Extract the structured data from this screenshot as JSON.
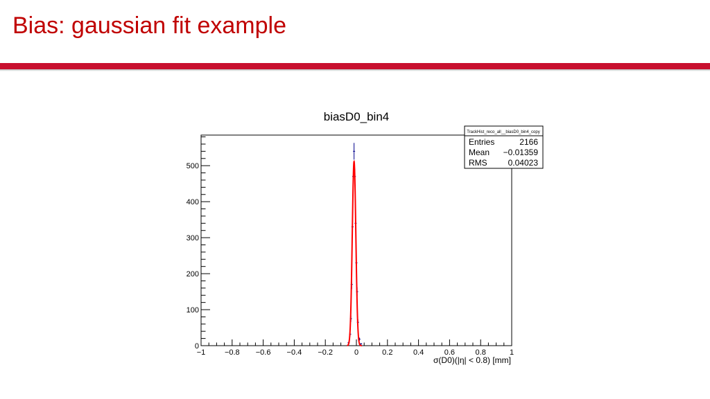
{
  "slide": {
    "title": "Bias: gaussian fit example",
    "accent_color": "#c8102e",
    "title_color": "#c00000"
  },
  "chart_data": {
    "type": "histogram",
    "title": "biasD0_bin4",
    "xlabel": "σ(D0)(|η| < 0.8) [mm]",
    "ylabel": "",
    "xlim": [
      -1,
      1
    ],
    "ylim": [
      0,
      585
    ],
    "x_ticks": [
      -1,
      -0.8,
      -0.6,
      -0.4,
      -0.2,
      0,
      0.2,
      0.4,
      0.6,
      0.8,
      1
    ],
    "x_tick_labels": [
      "−1",
      "−0.8",
      "−0.6",
      "−0.4",
      "−0.2",
      "0",
      "0.2",
      "0.4",
      "0.6",
      "0.8",
      "1"
    ],
    "y_ticks": [
      0,
      100,
      200,
      300,
      400,
      500
    ],
    "y_tick_labels": [
      "0",
      "100",
      "200",
      "300",
      "400",
      "500"
    ],
    "grid": false,
    "histogram_color": "#00008b",
    "fit_color": "#ff0000",
    "histogram_points": [
      {
        "x": -0.05,
        "y": 8
      },
      {
        "x": -0.04,
        "y": 32
      },
      {
        "x": -0.035,
        "y": 75
      },
      {
        "x": -0.03,
        "y": 170
      },
      {
        "x": -0.025,
        "y": 330
      },
      {
        "x": -0.02,
        "y": 470
      },
      {
        "x": -0.015,
        "y": 540
      },
      {
        "x": -0.01,
        "y": 470
      },
      {
        "x": -0.005,
        "y": 340
      },
      {
        "x": 0.0,
        "y": 230
      },
      {
        "x": 0.005,
        "y": 150
      },
      {
        "x": 0.01,
        "y": 65
      },
      {
        "x": 0.02,
        "y": 18
      },
      {
        "x": 0.03,
        "y": 5
      }
    ],
    "fit": {
      "function": "gaussian",
      "constant": 512,
      "mean": -0.015,
      "sigma": 0.0115,
      "range": [
        -0.06,
        0.035
      ]
    },
    "stats_box": {
      "name": "TrackHist_reco_all__biasD0_bin4_copy",
      "rows": [
        {
          "label": "Entries",
          "value": "2166"
        },
        {
          "label": "Mean",
          "value": "−0.01359"
        },
        {
          "label": "RMS",
          "value": "0.04023"
        }
      ]
    }
  }
}
